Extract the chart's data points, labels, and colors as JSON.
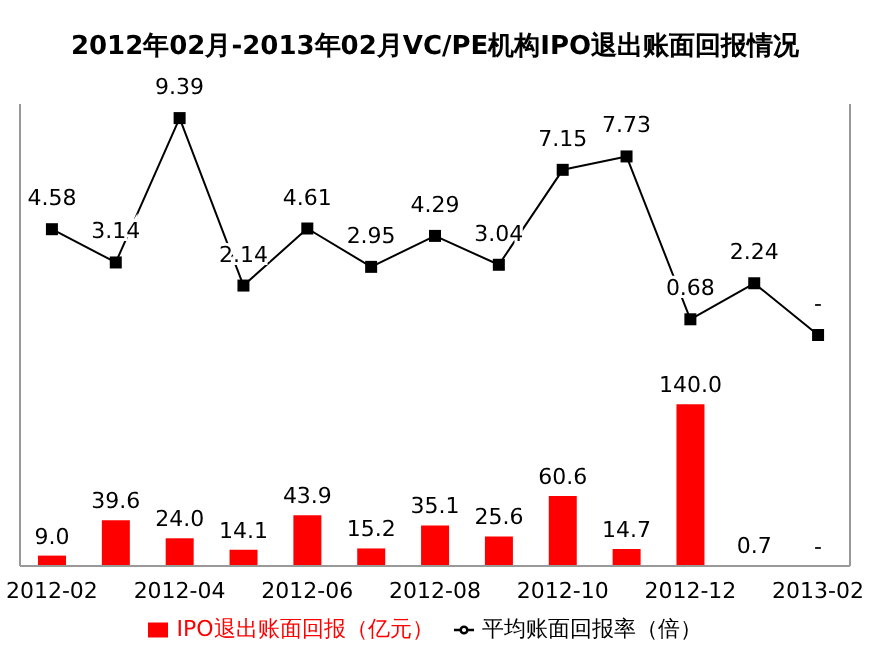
{
  "chart_data": {
    "type": "bar",
    "title": "2012年02月-2013年02月VC/PE机构IPO退出账面回报情况",
    "categories": [
      "2012-02",
      null,
      "2012-04",
      null,
      "2012-06",
      null,
      "2012-08",
      null,
      "2012-10",
      null,
      "2012-12",
      null,
      "2013-02"
    ],
    "series": [
      {
        "name": "IPO退出账面回报（亿元）",
        "color": "#ff0000",
        "values": [
          9.0,
          39.6,
          24.0,
          14.1,
          43.9,
          15.2,
          35.1,
          25.6,
          60.6,
          14.7,
          140.0,
          0.7,
          null
        ],
        "value_labels": [
          "9.0",
          "39.6",
          "24.0",
          "14.1",
          "43.9",
          "15.2",
          "35.1",
          "25.6",
          "60.6",
          "14.7",
          "140.0",
          "0.7",
          "-"
        ]
      },
      {
        "type": "line",
        "name": "平均账面回报率（倍）",
        "color": "#000000",
        "axis": "y2",
        "marker": "square",
        "values": [
          4.58,
          3.14,
          9.39,
          2.14,
          4.61,
          2.95,
          4.29,
          3.04,
          7.15,
          7.73,
          0.68,
          2.24,
          0
        ],
        "value_labels": [
          "4.58",
          "3.14",
          "9.39",
          "2.14",
          "4.61",
          "2.95",
          "4.29",
          "3.04",
          "7.15",
          "7.73",
          "0.68",
          "2.24",
          "-"
        ]
      }
    ],
    "ylim": [
      0,
      400
    ],
    "y2lim": [
      -10,
      10
    ],
    "tick_labels": false,
    "grid": false,
    "legend": "bottom"
  }
}
